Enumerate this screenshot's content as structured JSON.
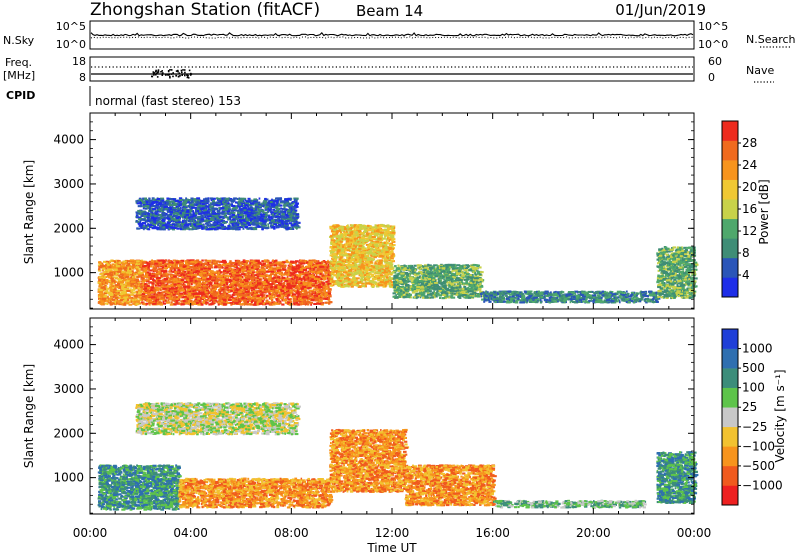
{
  "header": {
    "station": "Zhongshan Station (fitACF)",
    "beam": "Beam 14",
    "date": "01/Jun/2019"
  },
  "sky_panel": {
    "left_label": "N.Sky",
    "left_ticks": [
      "10^5",
      "10^0"
    ],
    "right_ticks": [
      "10^5",
      "10^0"
    ],
    "right_label": "N.Search"
  },
  "freq_panel": {
    "left_label_1": "Freq.",
    "left_label_2": "[MHz]",
    "left_ticks": [
      "18",
      "8"
    ],
    "right_ticks": [
      "60",
      "0"
    ],
    "right_label": "Nave"
  },
  "cpid": {
    "label": "CPID",
    "text": "normal (fast stereo) 153"
  },
  "time_axis": {
    "ticks": [
      "00:00",
      "04:00",
      "08:00",
      "12:00",
      "16:00",
      "20:00",
      "00:00"
    ],
    "label": "Time UT"
  },
  "chart_data": [
    {
      "type": "heatmap",
      "title": "",
      "xlabel": "Time UT",
      "ylabel": "Slant Range [km]",
      "x_ticks": [
        "00:00",
        "04:00",
        "08:00",
        "12:00",
        "16:00",
        "20:00",
        "00:00"
      ],
      "y_ticks": [
        1000,
        2000,
        3000,
        4000
      ],
      "xlim_hours": [
        0,
        24
      ],
      "ylim_km": [
        180,
        4600
      ],
      "colorbar": {
        "label": "Power [dB]",
        "ticks": [
          "4",
          "8",
          "12",
          "16",
          "20",
          "24",
          "28"
        ],
        "range": [
          0,
          30
        ],
        "colors": [
          "#1e2ee8",
          "#2a55b8",
          "#3f8d76",
          "#4fa86c",
          "#c8d24a",
          "#f0c833",
          "#f7941d",
          "#f06a1e",
          "#ee2b1e"
        ]
      },
      "regions": [
        {
          "t": [
            0.3,
            2.0
          ],
          "range_km": [
            300,
            1300
          ],
          "value": 24
        },
        {
          "t": [
            2.0,
            9.5
          ],
          "range_km": [
            300,
            1300
          ],
          "value": 27
        },
        {
          "t": [
            9.5,
            12.0
          ],
          "range_km": [
            700,
            2100
          ],
          "value": 18
        },
        {
          "t": [
            12.0,
            15.5
          ],
          "range_km": [
            450,
            1200
          ],
          "value": 12
        },
        {
          "t": [
            15.5,
            22.5
          ],
          "range_km": [
            350,
            600
          ],
          "value": 6
        },
        {
          "t": [
            22.5,
            24.0
          ],
          "range_km": [
            450,
            1600
          ],
          "value": 12
        },
        {
          "t": [
            1.8,
            8.2
          ],
          "range_km": [
            2000,
            2700
          ],
          "value": 5
        }
      ]
    },
    {
      "type": "heatmap",
      "title": "",
      "xlabel": "Time UT",
      "ylabel": "Slant Range [km]",
      "x_ticks": [
        "00:00",
        "04:00",
        "08:00",
        "12:00",
        "16:00",
        "20:00",
        "00:00"
      ],
      "y_ticks": [
        1000,
        2000,
        3000,
        4000
      ],
      "xlim_hours": [
        0,
        24
      ],
      "ylim_km": [
        180,
        4600
      ],
      "colorbar": {
        "label": "Velocity [m s⁻¹]",
        "ticks": [
          "1000",
          "500",
          "100",
          "25",
          "−25",
          "−100",
          "−500",
          "−1000"
        ],
        "colors": [
          "#1f3fd8",
          "#2f6fb0",
          "#3c8d7a",
          "#5ec44a",
          "#c8c8c8",
          "#f2c230",
          "#f7941d",
          "#f05a1e",
          "#ee2020"
        ]
      },
      "regions": [
        {
          "t": [
            0.3,
            3.5
          ],
          "range_km": [
            300,
            1300
          ],
          "value": 450
        },
        {
          "t": [
            3.5,
            9.5
          ],
          "range_km": [
            350,
            1000
          ],
          "value": -300
        },
        {
          "t": [
            9.5,
            12.5
          ],
          "range_km": [
            700,
            2100
          ],
          "value": -400
        },
        {
          "t": [
            12.5,
            16.0
          ],
          "range_km": [
            400,
            1300
          ],
          "value": -150
        },
        {
          "t": [
            16.0,
            22.0
          ],
          "range_km": [
            350,
            500
          ],
          "value": 80
        },
        {
          "t": [
            22.5,
            24.0
          ],
          "range_km": [
            450,
            1600
          ],
          "value": 300
        },
        {
          "t": [
            1.8,
            8.2
          ],
          "range_km": [
            2000,
            2700
          ],
          "value": 0
        }
      ]
    }
  ]
}
